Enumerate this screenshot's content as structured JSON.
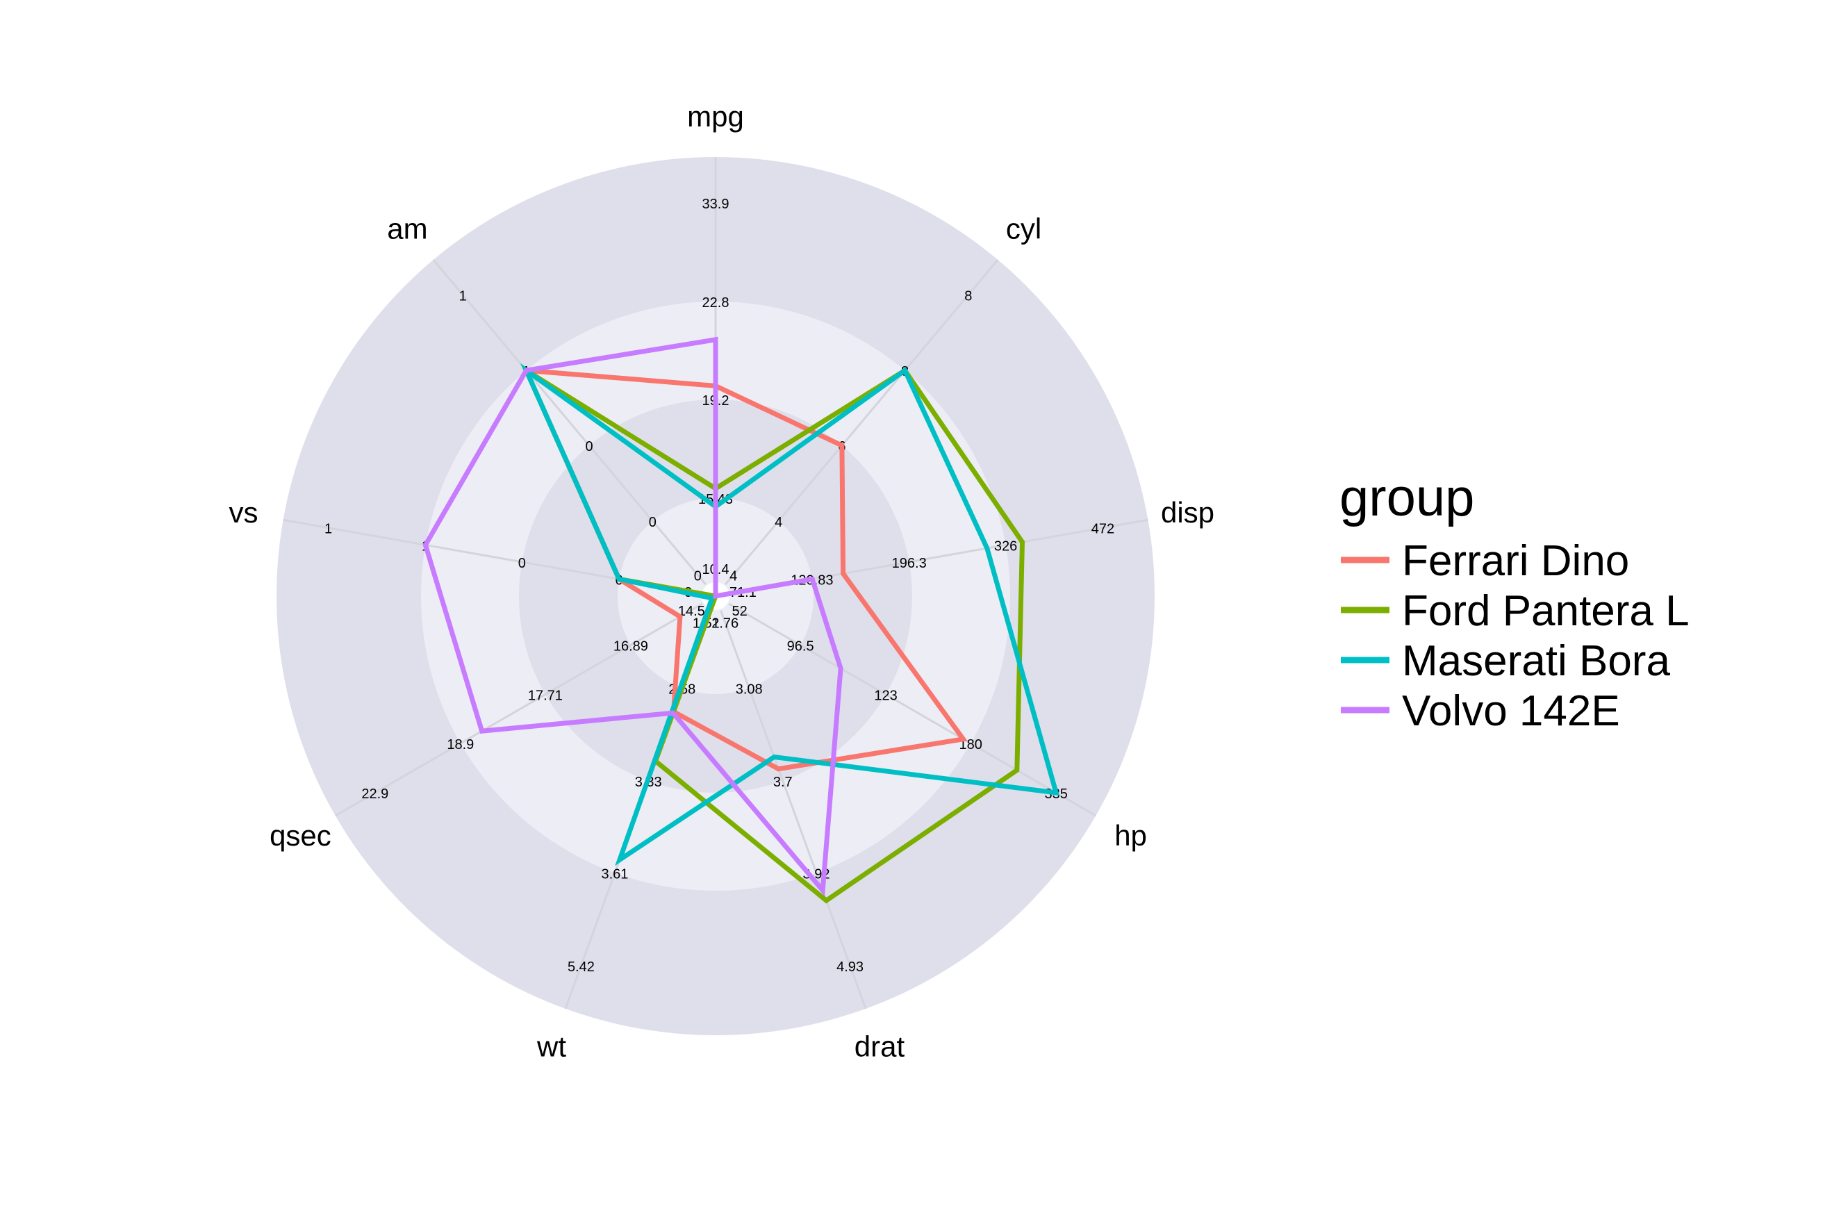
{
  "chart_data": {
    "type": "radar",
    "title": "",
    "axes": [
      {
        "name": "mpg",
        "ticks": [
          "10.4",
          "15.43",
          "19.2",
          "22.8",
          "33.9"
        ]
      },
      {
        "name": "cyl",
        "ticks": [
          "4",
          "4",
          "6",
          "8",
          "8"
        ]
      },
      {
        "name": "disp",
        "ticks": [
          "71.1",
          "120.83",
          "196.3",
          "326",
          "472"
        ]
      },
      {
        "name": "hp",
        "ticks": [
          "52",
          "96.5",
          "123",
          "180",
          "335"
        ]
      },
      {
        "name": "drat",
        "ticks": [
          "2.76",
          "3.08",
          "3.7",
          "3.92",
          "4.93"
        ]
      },
      {
        "name": "wt",
        "ticks": [
          "1.51",
          "2.58",
          "3.33",
          "3.61",
          "5.42"
        ]
      },
      {
        "name": "qsec",
        "ticks": [
          "14.5",
          "16.89",
          "17.71",
          "18.9",
          "22.9"
        ]
      },
      {
        "name": "vs",
        "ticks": [
          "0",
          "0",
          "0",
          "1",
          "1"
        ]
      },
      {
        "name": "am",
        "ticks": [
          "0",
          "0",
          "0",
          "1",
          "1"
        ]
      }
    ],
    "rings": 4,
    "legend": {
      "title": "group",
      "position": "right"
    },
    "series": [
      {
        "name": "Ferrari Dino",
        "color": "#F8766D",
        "values": [
          19.7,
          6,
          145,
          175,
          3.62,
          2.77,
          15.5,
          0,
          1
        ]
      },
      {
        "name": "Ford Pantera L",
        "color": "#7CAE00",
        "values": [
          15.8,
          8,
          351,
          264,
          4.22,
          3.17,
          14.5,
          0,
          1
        ]
      },
      {
        "name": "Maserati Bora",
        "color": "#00BFC4",
        "values": [
          15.0,
          8,
          301,
          335,
          3.54,
          3.57,
          14.6,
          0,
          1
        ]
      },
      {
        "name": "Volvo 142E",
        "color": "#C77CFF",
        "values": [
          21.4,
          4,
          121,
          109,
          4.11,
          2.78,
          18.6,
          1,
          1
        ]
      }
    ]
  }
}
